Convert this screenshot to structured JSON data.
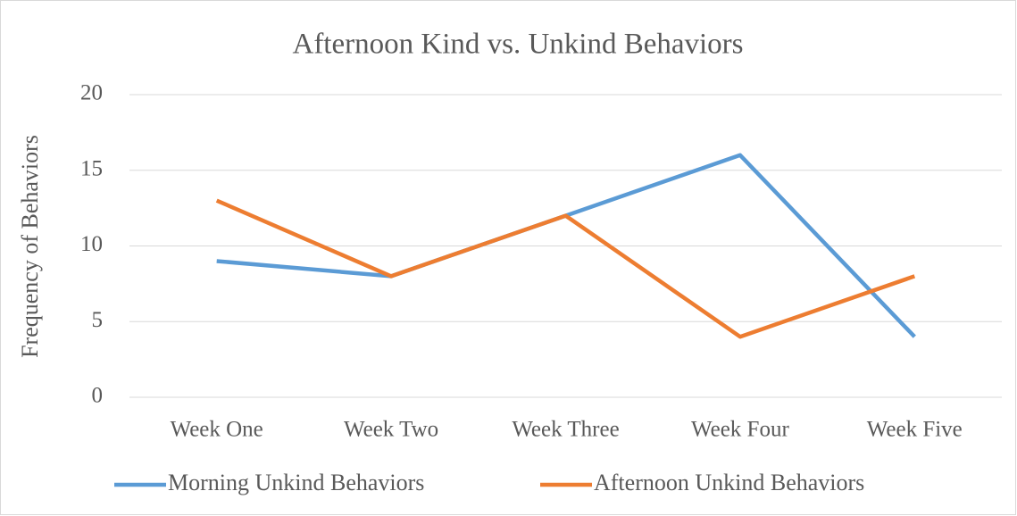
{
  "chart_data": {
    "type": "line",
    "title": "Afternoon Kind vs. Unkind Behaviors",
    "y_label": "Frequency of Behaviors",
    "categories": [
      "Week One",
      "Week Two",
      "Week Three",
      "Week Four",
      "Week Five"
    ],
    "series": [
      {
        "name": "Morning Unkind Behaviors",
        "color": "#5b9bd5",
        "values": [
          9,
          8,
          12,
          16,
          4
        ]
      },
      {
        "name": "Afternoon Unkind Behaviors",
        "color": "#ed7d31",
        "values": [
          13,
          8,
          12,
          4,
          8
        ]
      }
    ],
    "ylim": [
      0,
      20
    ],
    "yticks": [
      0,
      5,
      10,
      15,
      20
    ],
    "grid": true,
    "legend": "bottom"
  }
}
